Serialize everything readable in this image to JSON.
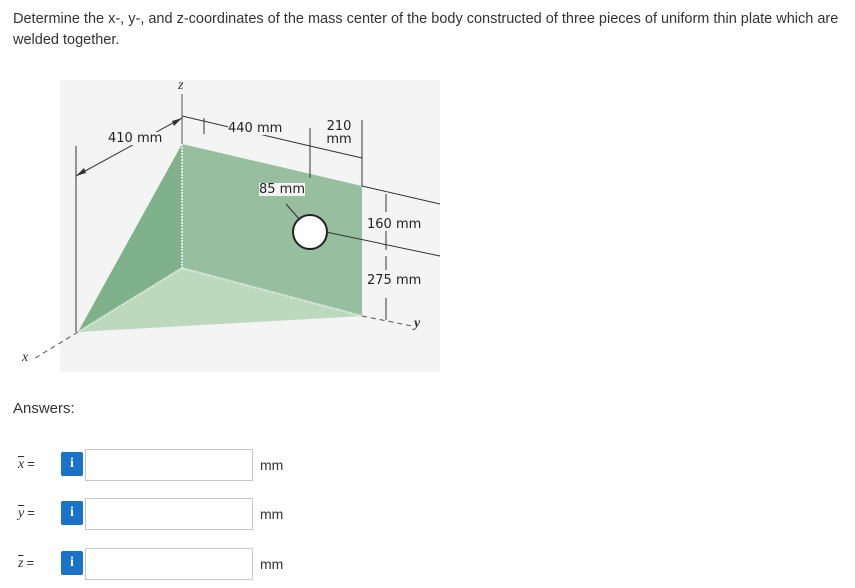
{
  "question": {
    "text": "Determine the x-, y-, and z-coordinates of the mass center of the body constructed of three pieces of uniform thin plate which are welded together."
  },
  "figure": {
    "dimensions": {
      "d1": "410 mm",
      "d2": "440 mm",
      "d3_line1": "210",
      "d3_line2": "mm",
      "d4": "85 mm",
      "d5": "160 mm",
      "d6": "275 mm"
    },
    "axes": {
      "x": "x",
      "y": "y",
      "z": "z"
    },
    "colors": {
      "background": "#f4f4f4",
      "back_plate": "#98bea0",
      "side_plate": "#7fb28a",
      "bottom_plate": "#bcd9be"
    }
  },
  "answers": {
    "title": "Answers:",
    "rows": [
      {
        "variable": "x",
        "equals": "=",
        "info_icon": "i",
        "value": "",
        "unit": "mm"
      },
      {
        "variable": "y",
        "equals": "=",
        "info_icon": "i",
        "value": "",
        "unit": "mm"
      },
      {
        "variable": "z",
        "equals": "=",
        "info_icon": "i",
        "value": "",
        "unit": "mm"
      }
    ]
  }
}
